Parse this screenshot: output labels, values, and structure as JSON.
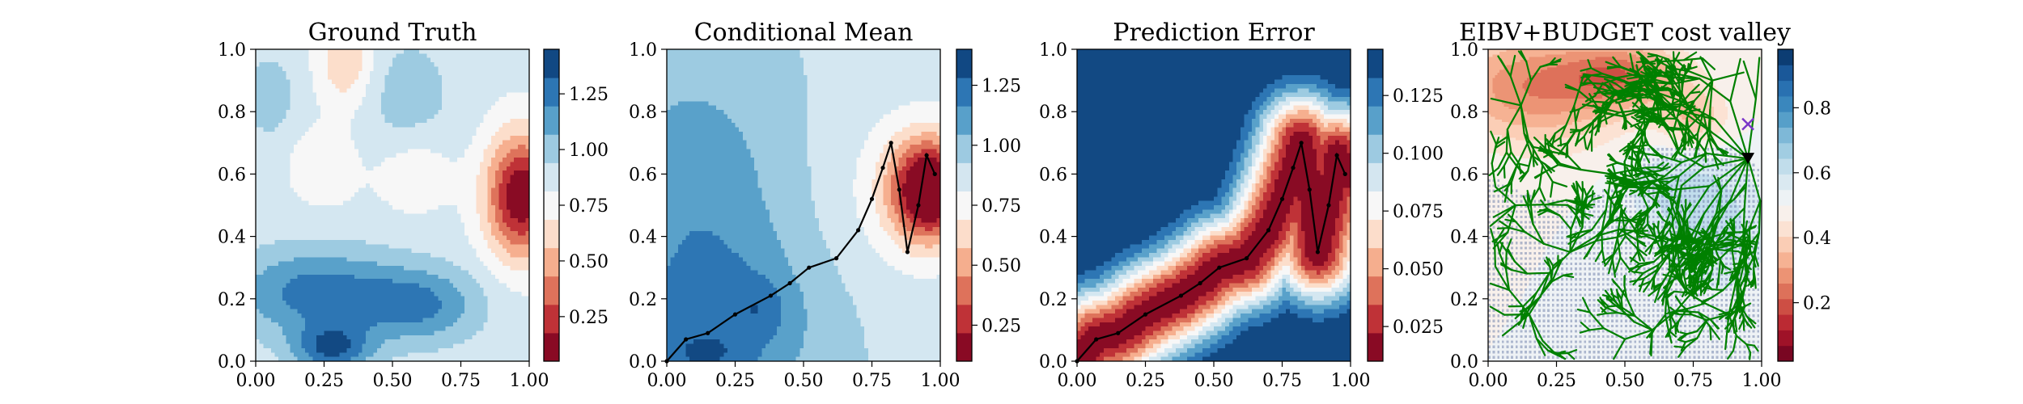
{
  "chart_data": [
    {
      "type": "heatmap",
      "title": "Ground Truth",
      "xlim": [
        0,
        1
      ],
      "ylim": [
        0,
        1
      ],
      "x_ticks": [
        "0.00",
        "0.25",
        "0.50",
        "0.75",
        "1.00"
      ],
      "y_ticks": [
        "0.0",
        "0.2",
        "0.4",
        "0.6",
        "0.8",
        "1.0"
      ],
      "colormap": "RdBu",
      "colorbar": {
        "range": [
          0.05,
          1.45
        ],
        "ticks": [
          0.25,
          0.5,
          0.75,
          1.0,
          1.25
        ],
        "tick_labels": [
          "0.25",
          "0.50",
          "0.75",
          "1.00",
          "1.25"
        ],
        "levels": 11
      },
      "features": [
        {
          "kind": "low",
          "x": 0.95,
          "y": 0.52,
          "value": 0.1
        },
        {
          "kind": "low",
          "x": 0.35,
          "y": 0.95,
          "value": 0.75
        },
        {
          "kind": "high",
          "x": 0.3,
          "y": 0.05,
          "value": 1.45
        },
        {
          "kind": "high",
          "x": 0.15,
          "y": 0.2,
          "value": 1.3
        },
        {
          "kind": "high",
          "x": 0.55,
          "y": 0.2,
          "value": 1.3
        }
      ]
    },
    {
      "type": "heatmap",
      "title": "Conditional Mean",
      "xlim": [
        0,
        1
      ],
      "ylim": [
        0,
        1
      ],
      "x_ticks": [
        "0.00",
        "0.25",
        "0.50",
        "0.75",
        "1.00"
      ],
      "y_ticks": [
        "0.0",
        "0.2",
        "0.4",
        "0.6",
        "0.8",
        "1.0"
      ],
      "colormap": "RdBu",
      "colorbar": {
        "range": [
          0.1,
          1.4
        ],
        "ticks": [
          0.25,
          0.5,
          0.75,
          1.0,
          1.25
        ],
        "tick_labels": [
          "0.25",
          "0.50",
          "0.75",
          "1.00",
          "1.25"
        ],
        "levels": 11
      },
      "path": [
        [
          0.0,
          0.0
        ],
        [
          0.07,
          0.07
        ],
        [
          0.15,
          0.09
        ],
        [
          0.25,
          0.15
        ],
        [
          0.38,
          0.21
        ],
        [
          0.45,
          0.25
        ],
        [
          0.52,
          0.3
        ],
        [
          0.62,
          0.33
        ],
        [
          0.7,
          0.42
        ],
        [
          0.75,
          0.52
        ],
        [
          0.79,
          0.62
        ],
        [
          0.82,
          0.7
        ],
        [
          0.85,
          0.55
        ],
        [
          0.88,
          0.35
        ],
        [
          0.92,
          0.5
        ],
        [
          0.95,
          0.66
        ],
        [
          0.98,
          0.6
        ]
      ]
    },
    {
      "type": "heatmap",
      "title": "Prediction Error",
      "xlim": [
        0,
        1
      ],
      "ylim": [
        0,
        1
      ],
      "x_ticks": [
        "0.00",
        "0.25",
        "0.50",
        "0.75",
        "1.00"
      ],
      "y_ticks": [
        "0.0",
        "0.2",
        "0.4",
        "0.6",
        "0.8",
        "1.0"
      ],
      "colormap": "RdBu",
      "colorbar": {
        "range": [
          0.01,
          0.145
        ],
        "ticks": [
          0.025,
          0.05,
          0.075,
          0.1,
          0.125
        ],
        "tick_labels": [
          "0.025",
          "0.050",
          "0.075",
          "0.100",
          "0.125"
        ],
        "levels": 11
      },
      "path": [
        [
          0.0,
          0.0
        ],
        [
          0.07,
          0.07
        ],
        [
          0.15,
          0.09
        ],
        [
          0.25,
          0.15
        ],
        [
          0.38,
          0.21
        ],
        [
          0.45,
          0.25
        ],
        [
          0.52,
          0.3
        ],
        [
          0.62,
          0.33
        ],
        [
          0.7,
          0.42
        ],
        [
          0.75,
          0.52
        ],
        [
          0.79,
          0.62
        ],
        [
          0.82,
          0.7
        ],
        [
          0.85,
          0.55
        ],
        [
          0.88,
          0.35
        ],
        [
          0.92,
          0.5
        ],
        [
          0.95,
          0.66
        ],
        [
          0.98,
          0.6
        ]
      ]
    },
    {
      "type": "heatmap",
      "title": "EIBV+BUDGET cost valley",
      "xlim": [
        0,
        1
      ],
      "ylim": [
        0,
        1
      ],
      "x_ticks": [
        "0.00",
        "0.25",
        "0.50",
        "0.75",
        "1.00"
      ],
      "y_ticks": [
        "0.0",
        "0.2",
        "0.4",
        "0.6",
        "0.8",
        "1.0"
      ],
      "colormap": "RdBu",
      "colorbar": {
        "range": [
          0.02,
          0.98
        ],
        "ticks": [
          0.2,
          0.4,
          0.6,
          0.8
        ],
        "tick_labels": [
          "0.2",
          "0.4",
          "0.6",
          "0.8"
        ],
        "levels": 20
      },
      "tree_color": "#008000",
      "tree_root": [
        0.95,
        0.65
      ],
      "markers": [
        {
          "kind": "current",
          "shape": "triangle-down",
          "x": 0.95,
          "y": 0.65,
          "color": "#000000"
        },
        {
          "kind": "target",
          "shape": "x",
          "x": 0.95,
          "y": 0.76,
          "color": "#7a35c8"
        }
      ]
    }
  ]
}
